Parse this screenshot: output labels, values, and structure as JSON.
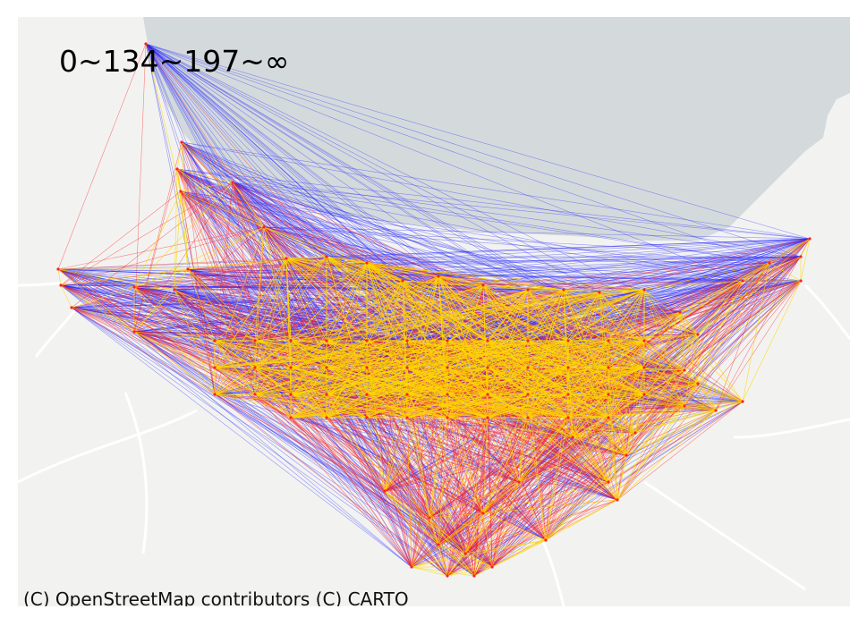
{
  "map": {
    "legend_label": "0~134~197~∞",
    "attribution": "(C) OpenStreetMap contributors (C) CARTO",
    "basemap": "CARTO light (positron)",
    "colors": {
      "land": "#f2f3f1",
      "water": "#d4dadc",
      "road": "#ffffff",
      "band_low": "#ffd700",
      "band_mid": "#ff2020",
      "band_high": "#2020ff"
    },
    "color_bands": [
      {
        "range": "0~134",
        "color": "#ffd700"
      },
      {
        "range": "134~197",
        "color": "#ff2020"
      },
      {
        "range": "197~∞",
        "color": "#2020ff"
      }
    ]
  }
}
